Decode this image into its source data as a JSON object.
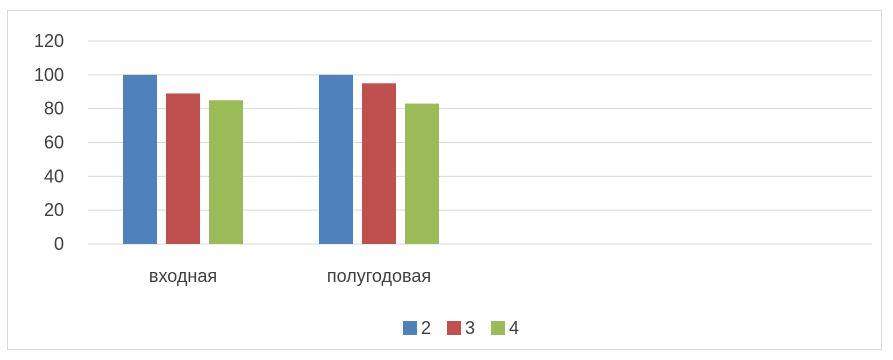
{
  "chart_data": {
    "type": "bar",
    "categories": [
      "входная",
      "полугодовая"
    ],
    "series": [
      {
        "name": "2",
        "values": [
          100,
          100
        ],
        "color": "#4f81bd"
      },
      {
        "name": "3",
        "values": [
          89,
          95
        ],
        "color": "#c0504d"
      },
      {
        "name": "4",
        "values": [
          85,
          83
        ],
        "color": "#9bbb59"
      }
    ],
    "title": "",
    "xlabel": "",
    "ylabel": "",
    "ylim": [
      0,
      120
    ],
    "yticks": [
      0,
      20,
      40,
      60,
      80,
      100,
      120
    ],
    "grid": true,
    "legend_position": "bottom",
    "gridline_color": "#d9d9d9"
  }
}
